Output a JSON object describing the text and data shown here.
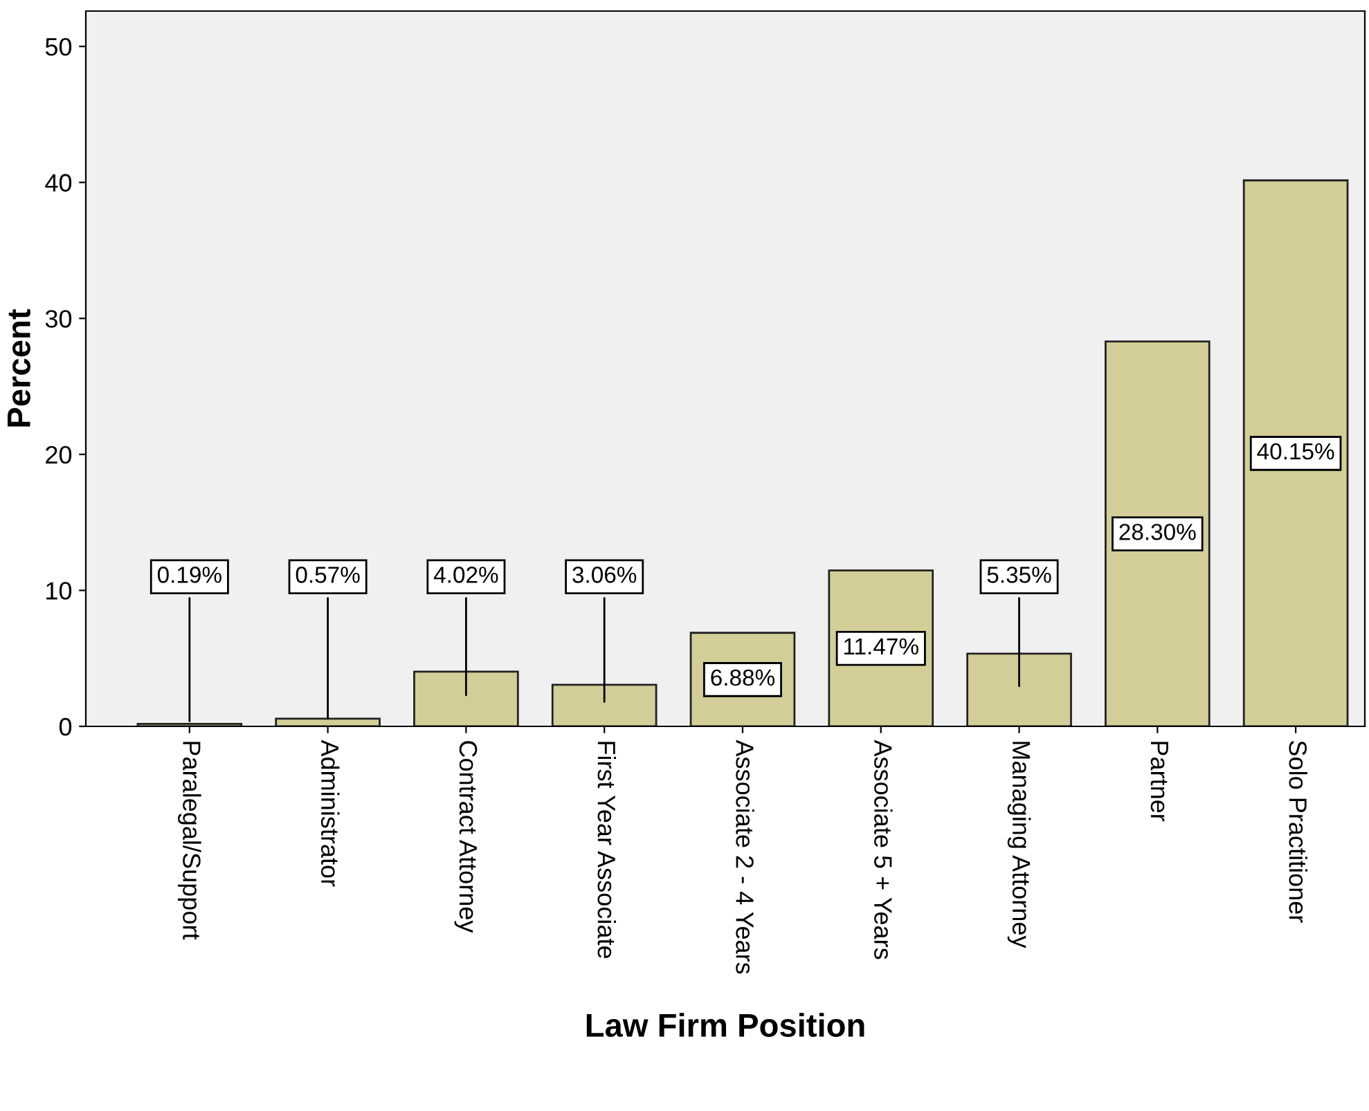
{
  "chart_data": {
    "type": "bar",
    "xlabel": "Law Firm Position",
    "ylabel": "Percent",
    "categories": [
      "Paralegal/Support",
      "Administrator",
      "Contract Attorney",
      "First Year Associate",
      "Associate 2 - 4 Years",
      "Associate 5 + Years",
      "Managing Attorney",
      "Partner",
      "Solo Practitioner"
    ],
    "values": [
      0.19,
      0.57,
      4.02,
      3.06,
      6.88,
      11.47,
      5.35,
      28.3,
      40.15
    ],
    "value_labels": [
      "0.19%",
      "0.57%",
      "4.02%",
      "3.06%",
      "6.88%",
      "11.47%",
      "5.35%",
      "28.30%",
      "40.15%"
    ],
    "color": "#d3ce97",
    "ylim": [
      0,
      52.6
    ],
    "yticks": [
      0,
      10,
      20,
      30,
      40,
      50
    ],
    "grid": false,
    "legend": false
  }
}
